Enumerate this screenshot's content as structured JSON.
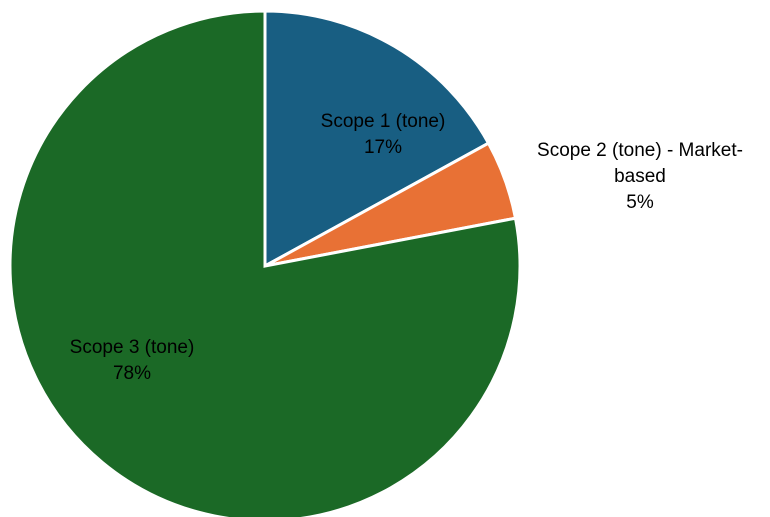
{
  "chart_data": {
    "type": "pie",
    "title": "",
    "slices": [
      {
        "label": "Scope 1 (tone)",
        "label_lines": [
          "Scope 1 (tone)"
        ],
        "value": 17,
        "percent_label": "17%",
        "color": "#185e82"
      },
      {
        "label": "Scope 2 (tone) - Market-based",
        "label_lines": [
          "Scope 2 (tone) - Market-",
          "based"
        ],
        "value": 5,
        "percent_label": "5%",
        "color": "#e87135"
      },
      {
        "label": "Scope 3 (tone)",
        "label_lines": [
          "Scope 3 (tone)"
        ],
        "value": 78,
        "percent_label": "78%",
        "color": "#1b6926"
      }
    ],
    "start_angle": "12 o'clock",
    "direction": "clockwise",
    "legend": "none"
  }
}
